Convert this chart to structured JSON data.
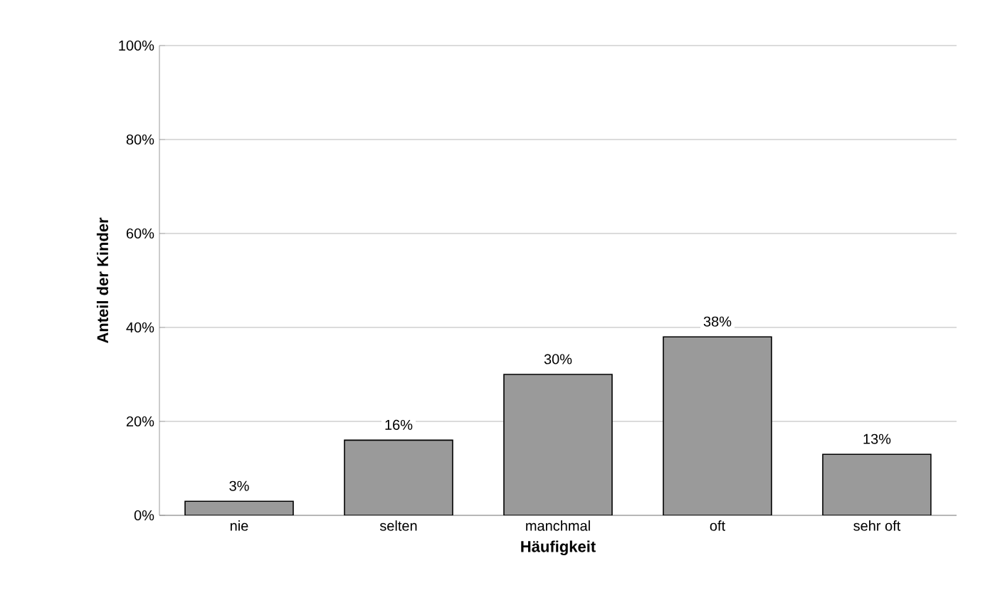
{
  "chart_data": {
    "type": "bar",
    "xlabel": "Häufigkeit",
    "ylabel": "Anteil der Kinder",
    "categories": [
      "nie",
      "selten",
      "manchmal",
      "oft",
      "sehr oft"
    ],
    "values": [
      3,
      16,
      30,
      38,
      13
    ],
    "value_labels": [
      "3%",
      "16%",
      "30%",
      "38%",
      "13%"
    ],
    "color": "#9a9a9a",
    "ylim": [
      0,
      100
    ],
    "yticks": [
      {
        "value": 0,
        "label": "0%"
      },
      {
        "value": 20,
        "label": "20%"
      },
      {
        "value": 40,
        "label": "40%"
      },
      {
        "value": 60,
        "label": "60%"
      },
      {
        "value": 80,
        "label": "80%"
      },
      {
        "value": 100,
        "label": "100%"
      }
    ],
    "grid": "y"
  }
}
